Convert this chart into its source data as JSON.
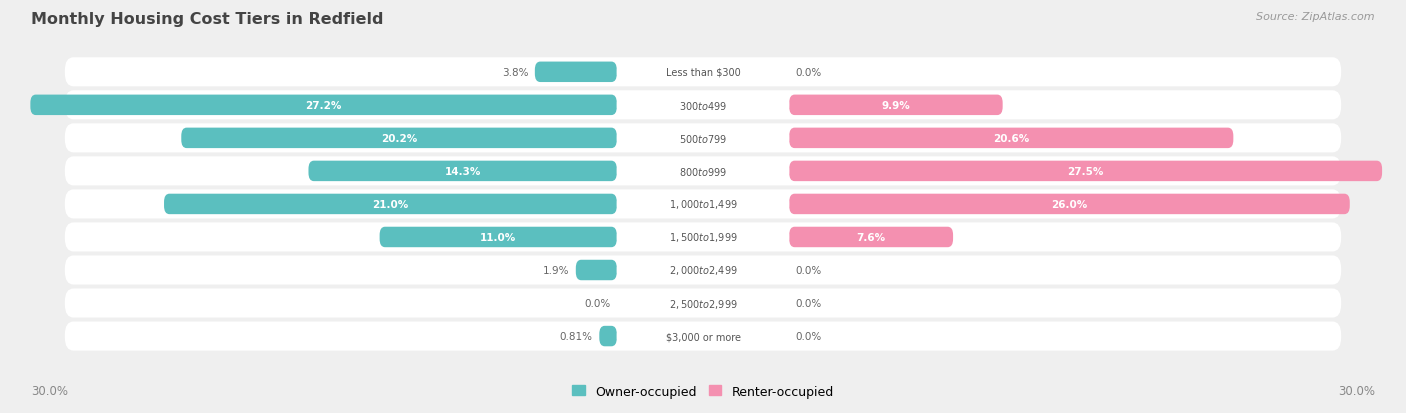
{
  "title": "Monthly Housing Cost Tiers in Redfield",
  "source": "Source: ZipAtlas.com",
  "categories": [
    "Less than $300",
    "$300 to $499",
    "$500 to $799",
    "$800 to $999",
    "$1,000 to $1,499",
    "$1,500 to $1,999",
    "$2,000 to $2,499",
    "$2,500 to $2,999",
    "$3,000 or more"
  ],
  "owner_values": [
    3.8,
    27.2,
    20.2,
    14.3,
    21.0,
    11.0,
    1.9,
    0.0,
    0.81
  ],
  "renter_values": [
    0.0,
    9.9,
    20.6,
    27.5,
    26.0,
    7.6,
    0.0,
    0.0,
    0.0
  ],
  "owner_color": "#5bbfbf",
  "renter_color": "#f490b0",
  "owner_label": "Owner-occupied",
  "renter_label": "Renter-occupied",
  "max_val": 30.0,
  "x_axis_label_left": "30.0%",
  "x_axis_label_right": "30.0%",
  "bg_color": "#efefef",
  "row_bg_color": "#ffffff",
  "title_color": "#444444",
  "source_color": "#999999",
  "label_color_inside": "#ffffff",
  "label_color_outside": "#666666",
  "center_label_color": "#555555",
  "large_threshold": 5.0
}
